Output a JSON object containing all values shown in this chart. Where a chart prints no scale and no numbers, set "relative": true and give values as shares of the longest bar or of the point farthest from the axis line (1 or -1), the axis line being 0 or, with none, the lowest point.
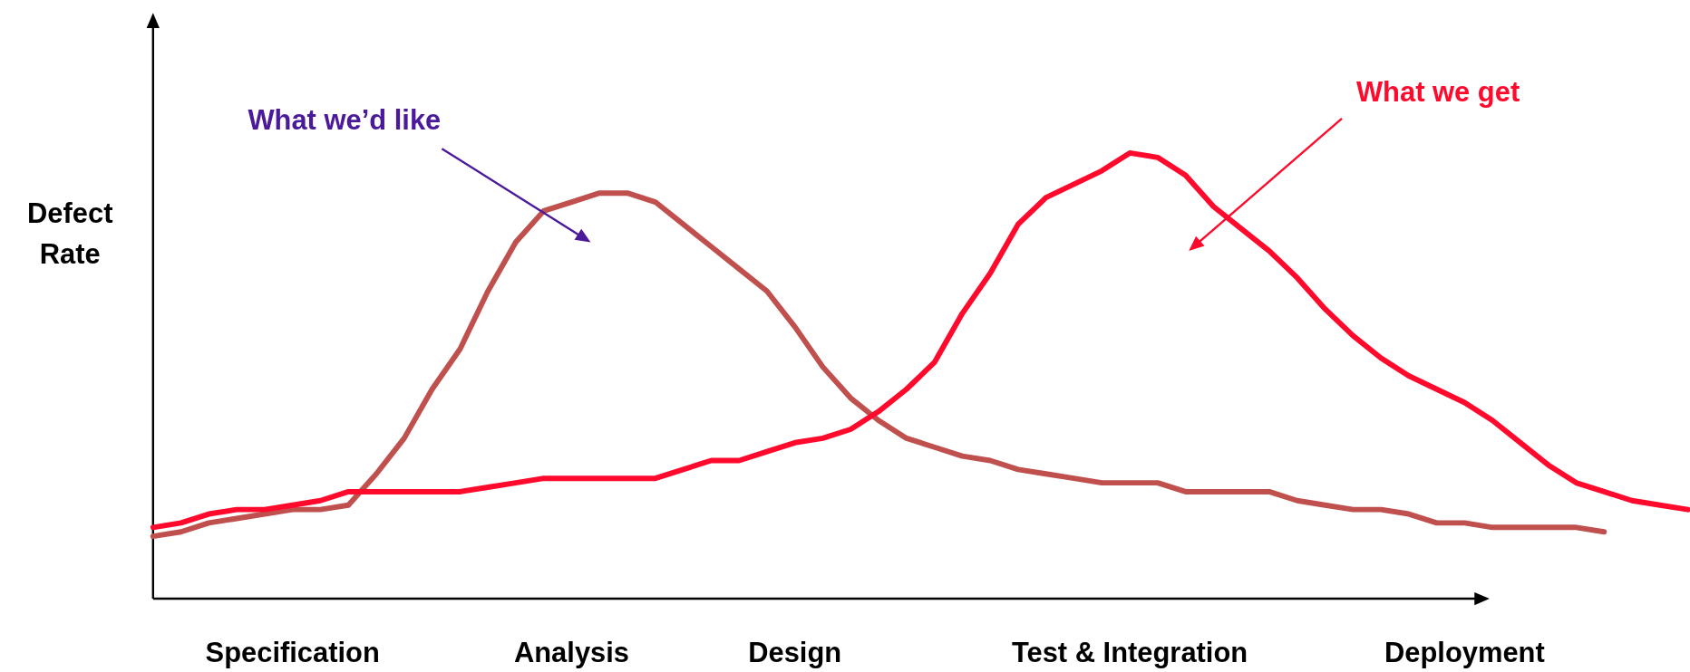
{
  "chart_data": {
    "type": "line",
    "relative": true,
    "ylabel": "Defect Rate",
    "annotations": [
      "What we’d like",
      "What we get"
    ],
    "categories": [
      null,
      null,
      null,
      null,
      null,
      "Specification",
      null,
      null,
      null,
      null,
      null,
      null,
      null,
      null,
      null,
      "Analysis",
      null,
      null,
      null,
      null,
      null,
      null,
      null,
      "Design",
      null,
      null,
      null,
      null,
      null,
      null,
      null,
      null,
      null,
      null,
      null,
      "Test & Integration",
      null,
      null,
      null,
      null,
      null,
      null,
      null,
      null,
      null,
      null,
      null,
      "Deployment",
      null,
      null,
      null,
      null,
      null,
      null,
      null,
      null
    ],
    "series": [
      {
        "color": "#c0504d",
        "values": [
          0.14,
          0.15,
          0.17,
          0.18,
          0.19,
          0.2,
          0.2,
          0.21,
          0.28,
          0.36,
          0.47,
          0.56,
          0.69,
          0.8,
          0.87,
          0.89,
          0.91,
          0.91,
          0.89,
          0.84,
          0.79,
          0.74,
          0.69,
          0.61,
          0.52,
          0.45,
          0.4,
          0.36,
          0.34,
          0.32,
          0.31,
          0.29,
          0.28,
          0.27,
          0.26,
          0.26,
          0.26,
          0.24,
          0.24,
          0.24,
          0.24,
          0.22,
          0.21,
          0.2,
          0.2,
          0.19,
          0.17,
          0.17,
          0.16,
          0.16,
          0.16,
          0.16,
          0.15,
          null,
          null,
          null
        ]
      },
      {
        "color": "#ff0a2c",
        "values": [
          0.16,
          0.17,
          0.19,
          0.2,
          0.2,
          0.21,
          0.22,
          0.24,
          0.24,
          0.24,
          0.24,
          0.24,
          0.25,
          0.26,
          0.27,
          0.27,
          0.27,
          0.27,
          0.27,
          0.29,
          0.31,
          0.31,
          0.33,
          0.35,
          0.36,
          0.38,
          0.42,
          0.47,
          0.53,
          0.64,
          0.73,
          0.84,
          0.9,
          0.93,
          0.96,
          1,
          0.99,
          0.95,
          0.88,
          0.83,
          0.78,
          0.72,
          0.65,
          0.59,
          0.54,
          0.5,
          0.47,
          0.44,
          0.4,
          0.35,
          0.3,
          0.26,
          0.24,
          0.22,
          0.21,
          0.2
        ]
      }
    ]
  }
}
